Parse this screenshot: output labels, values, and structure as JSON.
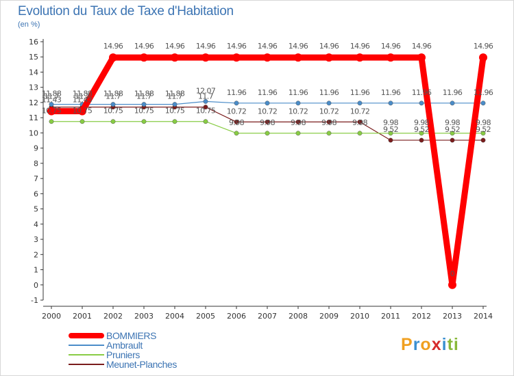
{
  "title": "Evolution du Taux de Taxe d'Habitation",
  "subtitle": "(en %)",
  "brand": {
    "letters": [
      {
        "ch": "P",
        "color": "#f0a020"
      },
      {
        "ch": "r",
        "color": "#3a8fd0"
      },
      {
        "ch": "o",
        "color": "#f0a020"
      },
      {
        "ch": "x",
        "color": "#d62a2a"
      },
      {
        "ch": "i",
        "color": "#3a8fd0"
      },
      {
        "ch": "t",
        "color": "#88b83a"
      },
      {
        "ch": "i",
        "color": "#88b83a"
      }
    ]
  },
  "chart_data": {
    "type": "line",
    "title": "Evolution du Taux de Taxe d'Habitation",
    "ylabel": "(en %)",
    "xlabel": "",
    "grid": false,
    "legend_position": "bottom-left",
    "ylim": [
      -1,
      16
    ],
    "yticks": [
      "-1",
      "0",
      "1",
      "2",
      "3",
      "4",
      "5",
      "6",
      "7",
      "8",
      "9",
      "10",
      "11",
      "12",
      "13",
      "14",
      "15",
      "16"
    ],
    "categories": [
      "2000",
      "2001",
      "2002",
      "2003",
      "2004",
      "2005",
      "2006",
      "2007",
      "2008",
      "2009",
      "2010",
      "2011",
      "2012",
      "2013",
      "2014"
    ],
    "series": [
      {
        "name": "BOMMIERS",
        "color": "#ff0000",
        "values": [
          11.43,
          11.43,
          14.96,
          14.96,
          14.96,
          14.96,
          14.96,
          14.96,
          14.96,
          14.96,
          14.96,
          14.96,
          14.96,
          0,
          14.96
        ],
        "labels": [
          "11.43",
          "11.43",
          "14.96",
          "14.96",
          "14.96",
          "14.96",
          "14.96",
          "14.96",
          "14.96",
          "14.96",
          "14.96",
          "14.96",
          "14.96",
          "0",
          "14.96"
        ]
      },
      {
        "name": "Ambrault",
        "color": "#4a8cc8",
        "values": [
          11.88,
          11.88,
          11.88,
          11.88,
          11.88,
          12.07,
          11.96,
          11.96,
          11.96,
          11.96,
          11.96,
          11.96,
          11.96,
          11.96,
          11.96
        ],
        "labels": [
          "11.88",
          "11.88",
          "11.88",
          "11.88",
          "11.88",
          "12.07",
          "11.96",
          "11.96",
          "11.96",
          "11.96",
          "11.96",
          "11.96",
          "11.96",
          "11.96",
          "11.96"
        ]
      },
      {
        "name": "Pruniers",
        "color": "#88cc44",
        "values": [
          10.75,
          10.75,
          10.75,
          10.75,
          10.75,
          10.75,
          9.98,
          9.98,
          9.98,
          9.98,
          9.98,
          9.98,
          9.98,
          9.98,
          9.98
        ],
        "labels": [
          "10.75",
          "10.75",
          "10.75",
          "10.75",
          "10.75",
          "10.75",
          "9.98",
          "9.98",
          "9.98",
          "9.98",
          "9.98",
          "9.98",
          "9.98",
          "9.98",
          "9.98"
        ]
      },
      {
        "name": "Meunet-Planches",
        "color": "#7a1c1c",
        "values": [
          11.7,
          11.7,
          11.7,
          11.7,
          11.7,
          11.7,
          10.72,
          10.72,
          10.72,
          10.72,
          10.72,
          9.52,
          9.52,
          9.52,
          9.52
        ],
        "labels": [
          "11.7",
          "11.7",
          "11.7",
          "11.7",
          "11.7",
          "11.7",
          "10.72",
          "10.72",
          "10.72",
          "10.72",
          "10.72",
          "9.52",
          "9.52",
          "9.52",
          "9.52"
        ]
      }
    ]
  }
}
